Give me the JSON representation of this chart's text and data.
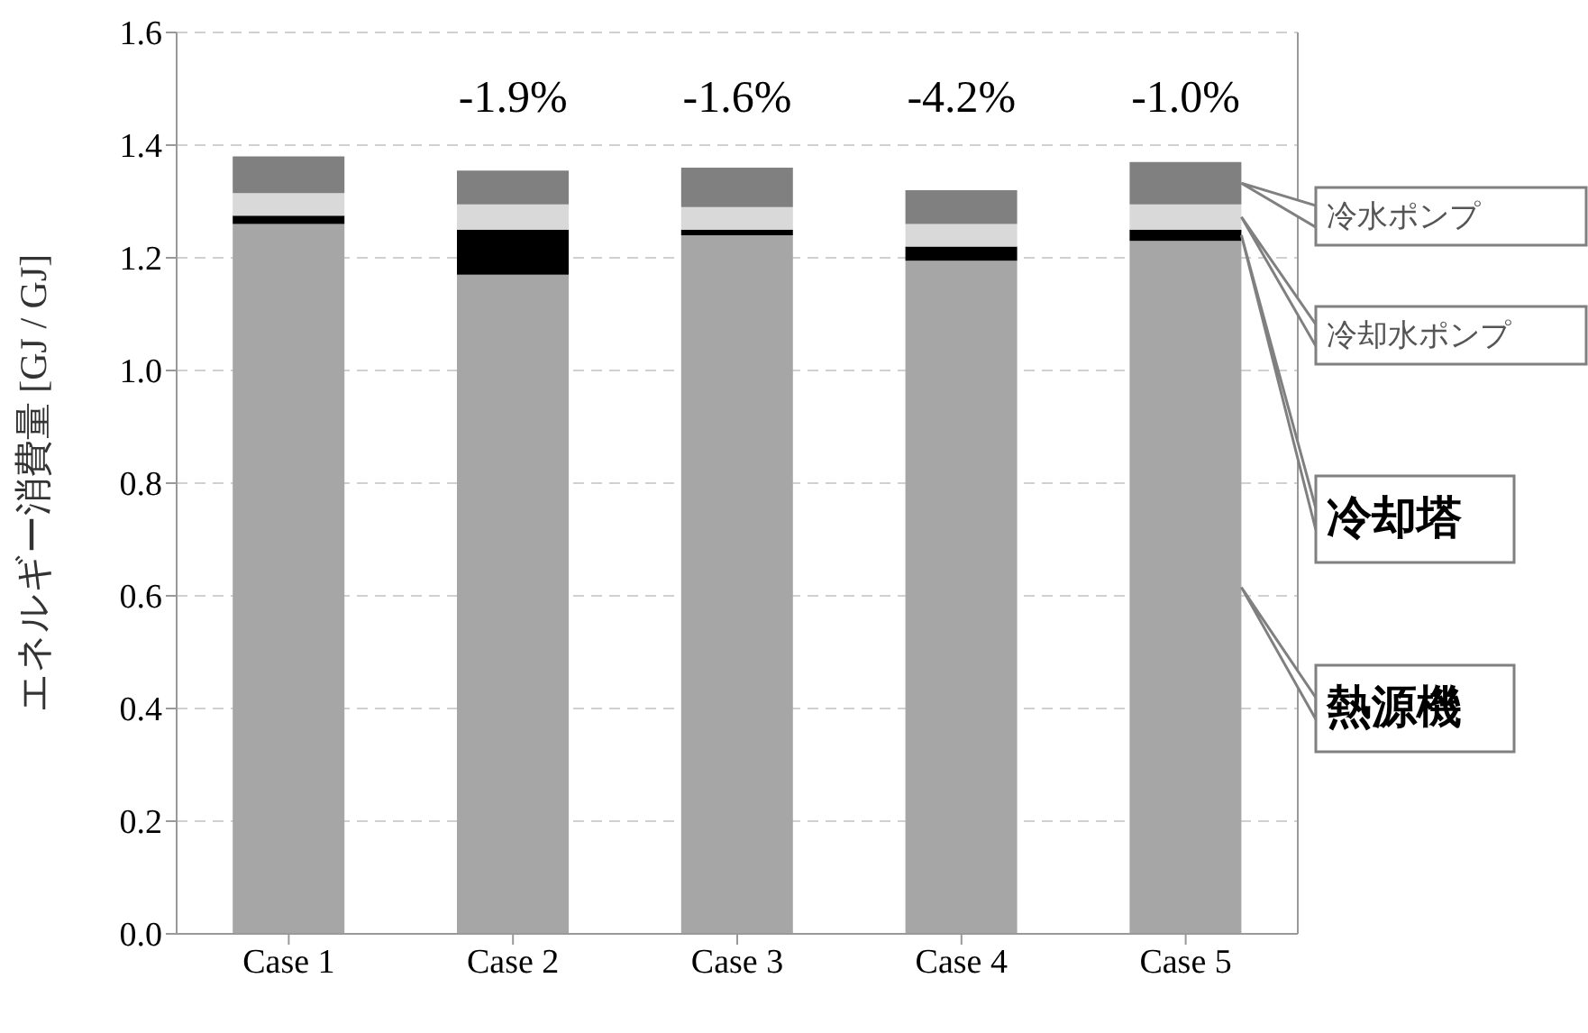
{
  "chart_data": {
    "type": "bar",
    "stacked": true,
    "ylabel": "エネルギー消費量 [GJ / GJ]",
    "categories": [
      "Case 1",
      "Case 2",
      "Case 3",
      "Case 4",
      "Case 5"
    ],
    "series": [
      {
        "name": "熱源機",
        "color": "#a6a6a6",
        "values": [
          1.26,
          1.17,
          1.24,
          1.195,
          1.23
        ]
      },
      {
        "name": "冷却塔",
        "color": "#000000",
        "values": [
          0.015,
          0.08,
          0.01,
          0.025,
          0.02
        ]
      },
      {
        "name": "冷却水ポンプ",
        "color": "#d9d9d9",
        "values": [
          0.04,
          0.045,
          0.04,
          0.04,
          0.045
        ]
      },
      {
        "name": "冷水ポンプ",
        "color": "#808080",
        "values": [
          0.065,
          0.06,
          0.07,
          0.06,
          0.075
        ]
      }
    ],
    "annotations": [
      "-1.9%",
      "-1.6%",
      "-4.2%",
      "-1.0%"
    ],
    "ylim": [
      0,
      1.6
    ],
    "yticks": [
      {
        "value": 0,
        "label": "0.0"
      },
      0.2,
      0.4,
      0.6,
      0.8,
      {
        "value": 1,
        "label": "1.0"
      },
      1.2,
      1.4,
      1.6
    ],
    "grid": "y",
    "legend": "right"
  }
}
